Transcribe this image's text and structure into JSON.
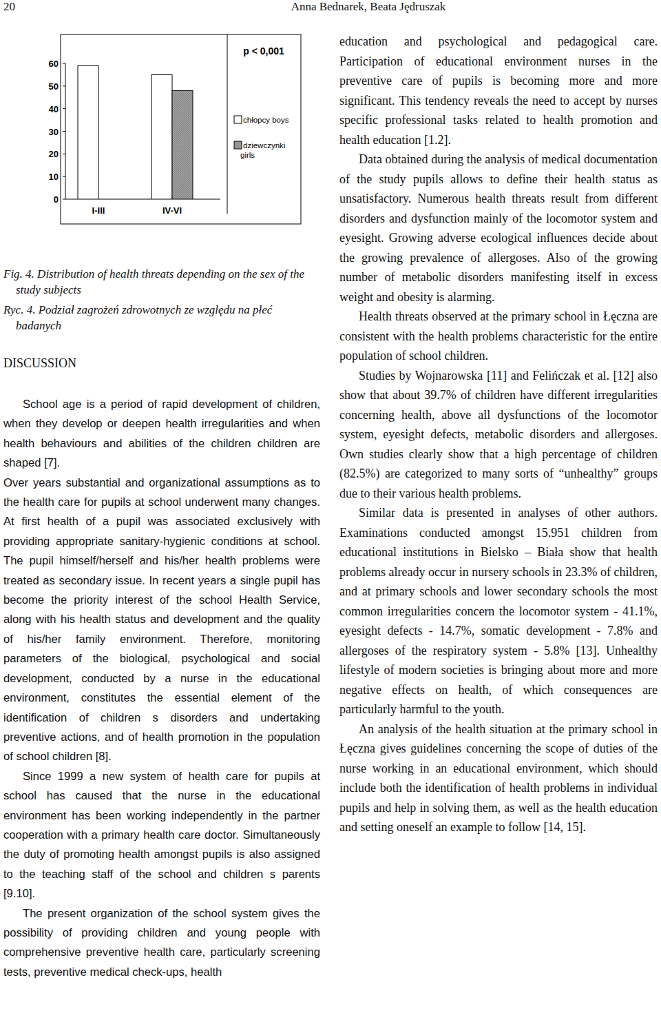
{
  "header": {
    "page_number": "20",
    "authors": "Anna Bednarek, Beata Jędruszak"
  },
  "chart_data": {
    "type": "bar",
    "categories": [
      "I-III",
      "IV-VI"
    ],
    "series": [
      {
        "name": "chłopcy boys",
        "color": "#ffffff",
        "values": [
          59,
          55
        ]
      },
      {
        "name": "dziewczynki girls",
        "color": "#a0a0a0",
        "values": [
          null,
          48
        ]
      }
    ],
    "ylim": [
      0,
      60
    ],
    "yticks": [
      0,
      10,
      20,
      30,
      40,
      50,
      60
    ],
    "grid": false,
    "legend": "right",
    "annotation": "p < 0,001"
  },
  "figure": {
    "caption_en": "Fig. 4. Distribution of health threats depending on the sex of the study subjects",
    "caption_pl": "Ryc. 4. Podział zagrożeń zdrowotnych ze względu na płeć badanych"
  },
  "section": {
    "heading": "DISCUSSION"
  },
  "left_column": {
    "paragraphs": [
      "School age is a period of rapid development of children, when they develop or deepen health irregularities and when health behaviours and abilities of the children children are shaped [7].",
      "Over years substantial and organizational assumptions as to the health care for pupils at school underwent many changes. At first health of a pupil was associated exclusively with providing appropriate sanitary-hygienic conditions at school. The pupil himself/herself and his/her health problems were treated as secondary issue. In recent years a single pupil has become the priority interest of the school Health Service, along with his health status and development and the quality of his/her family environment. Therefore, monitoring parameters of the biological, psychological and social development, conducted by a nurse in the educational environment, constitutes the essential element of the identification of children s disorders and undertaking preventive actions, and of health promotion in the population of school children [8].",
      "Since 1999 a new system of health care for pupils at school has caused that the nurse in the educational environment has been working independently in the partner cooperation with a primary health care doctor. Simultaneously the duty of promoting health amongst pupils is also assigned to the teaching staff of the school and children s parents [9.10].",
      "The present organization of the school system gives the possibility of providing children and young people with comprehensive preventive health care, particularly screening tests, preventive medical check-ups, health"
    ]
  },
  "right_column": {
    "paragraphs": [
      "education and psychological and pedagogical care. Participation of educational environment nurses in the preventive care of pupils is becoming more and more significant. This tendency reveals the need to accept by nurses specific professional tasks related to health promotion and health education [1.2].",
      "Data obtained during the analysis of medical documentation of the study pupils allows to define their health status as unsatisfactory. Numerous health threats result from different disorders and dysfunction mainly of the locomotor system and eyesight. Growing adverse ecological influences decide about the growing prevalence of allergoses. Also of the growing number of metabolic disorders manifesting itself in excess weight and obesity is alarming.",
      "Health threats observed at the primary school in Łęczna are consistent with the health problems characteristic for the entire population of school children.",
      "Studies by Wojnarowska [11] and Felińczak et al. [12] also show that about 39.7% of children have different irregularities concerning health, above all dysfunctions of the locomotor system, eyesight defects, metabolic disorders and allergoses. Own studies clearly show that a high percentage of children (82.5%) are categorized to many sorts of “unhealthy” groups due to their various health problems.",
      "Similar data is presented in analyses of other authors. Examinations conducted amongst 15.951 children from educational institutions in Bielsko – Biała show that health problems already occur in nursery schools in 23.3% of children, and at primary schools and lower secondary schools the most common irregularities concern the locomotor system - 41.1%, eyesight defects - 14.7%, somatic development - 7.8% and allergoses of the respiratory system - 5.8% [13]. Unhealthy lifestyle of modern societies is bringing about more and more negative effects on health, of which consequences are particularly harmful to the youth.",
      "An analysis of the health situation at the primary school in Łęczna gives guidelines concerning the scope of duties of the nurse working in an educational environment, which should include both the identification of health problems in individual pupils and help in solving them, as well as the health education and setting oneself an example to follow [14, 15]."
    ]
  }
}
